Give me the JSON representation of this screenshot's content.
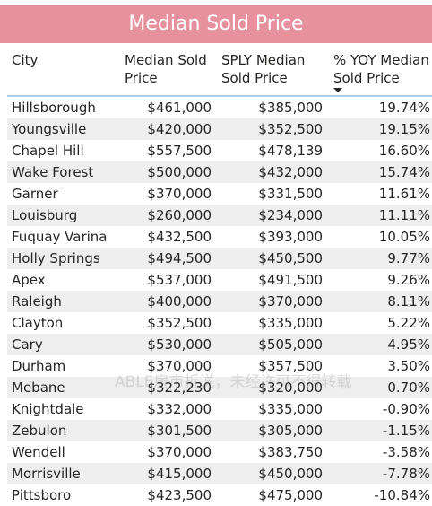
{
  "title": "Median Sold Price",
  "columns": {
    "city": "City",
    "median_line1": "Median Sold",
    "median_line2": "Price",
    "sply_line1": "SPLY Median",
    "sply_line2": "Sold Price",
    "yoy_line1": "% YOY Median",
    "yoy_line2": "Sold Price"
  },
  "sort_indicator": "sort-descending-icon",
  "rows": [
    {
      "city": "Hillsborough",
      "median": "$461,000",
      "sply": "$385,000",
      "yoy": "19.74%"
    },
    {
      "city": "Youngsville",
      "median": "$420,000",
      "sply": "$352,500",
      "yoy": "19.15%"
    },
    {
      "city": "Chapel Hill",
      "median": "$557,500",
      "sply": "$478,139",
      "yoy": "16.60%"
    },
    {
      "city": "Wake Forest",
      "median": "$500,000",
      "sply": "$432,000",
      "yoy": "15.74%"
    },
    {
      "city": "Garner",
      "median": "$370,000",
      "sply": "$331,500",
      "yoy": "11.61%"
    },
    {
      "city": "Louisburg",
      "median": "$260,000",
      "sply": "$234,000",
      "yoy": "11.11%"
    },
    {
      "city": "Fuquay Varina",
      "median": "$432,500",
      "sply": "$393,000",
      "yoy": "10.05%"
    },
    {
      "city": "Holly Springs",
      "median": "$494,500",
      "sply": "$450,500",
      "yoy": "9.77%"
    },
    {
      "city": "Apex",
      "median": "$537,000",
      "sply": "$491,500",
      "yoy": "9.26%"
    },
    {
      "city": "Raleigh",
      "median": "$400,000",
      "sply": "$370,000",
      "yoy": "8.11%"
    },
    {
      "city": "Clayton",
      "median": "$352,500",
      "sply": "$335,000",
      "yoy": "5.22%"
    },
    {
      "city": "Cary",
      "median": "$530,000",
      "sply": "$505,000",
      "yoy": "4.95%"
    },
    {
      "city": "Durham",
      "median": "$370,000",
      "sply": "$357,500",
      "yoy": "3.50%"
    },
    {
      "city": "Mebane",
      "median": "$322,230",
      "sply": "$320,000",
      "yoy": "0.70%"
    },
    {
      "city": "Knightdale",
      "median": "$332,000",
      "sply": "$335,000",
      "yoy": "-0.90%"
    },
    {
      "city": "Zebulon",
      "median": "$301,500",
      "sply": "$305,000",
      "yoy": "-1.15%"
    },
    {
      "city": "Wendell",
      "median": "$370,000",
      "sply": "$383,750",
      "yoy": "-3.58%"
    },
    {
      "city": "Morrisville",
      "median": "$415,000",
      "sply": "$450,000",
      "yoy": "-7.78%"
    },
    {
      "city": "Pittsboro",
      "median": "$423,500",
      "sply": "$475,000",
      "yoy": "-10.84%"
    }
  ],
  "watermark": "ABLE房市折说，未经许可不得转载"
}
